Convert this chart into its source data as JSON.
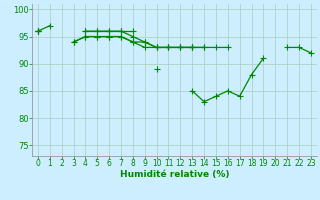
{
  "bg_color": "#cceeff",
  "grid_color": "#aaccbb",
  "line_color": "#008800",
  "xlabel": "Humidité relative (%)",
  "xlim": [
    -0.5,
    23.5
  ],
  "ylim": [
    73,
    101
  ],
  "yticks": [
    75,
    80,
    85,
    90,
    95,
    100
  ],
  "xticks": [
    0,
    1,
    2,
    3,
    4,
    5,
    6,
    7,
    8,
    9,
    10,
    11,
    12,
    13,
    14,
    15,
    16,
    17,
    18,
    19,
    20,
    21,
    22,
    23
  ],
  "lines": [
    [
      96,
      97,
      null,
      null,
      96,
      96,
      96,
      96,
      96,
      null,
      89,
      null,
      null,
      85,
      83,
      84,
      85,
      84,
      88,
      91,
      null,
      93,
      93,
      92
    ],
    [
      96,
      null,
      null,
      94,
      95,
      95,
      95,
      95,
      94,
      93,
      93,
      93,
      93,
      93,
      null,
      null,
      null,
      null,
      null,
      null,
      null,
      null,
      null,
      null
    ],
    [
      96,
      null,
      null,
      null,
      96,
      96,
      96,
      96,
      95,
      94,
      93,
      93,
      93,
      93,
      93,
      93,
      93,
      null,
      null,
      null,
      null,
      null,
      null,
      null
    ],
    [
      96,
      null,
      null,
      94,
      95,
      95,
      95,
      95,
      94,
      94,
      93,
      93,
      93,
      93,
      93,
      null,
      null,
      null,
      null,
      null,
      null,
      null,
      null,
      null
    ]
  ],
  "xlabel_fontsize": 6.5,
  "tick_fontsize": 5.5,
  "lw": 0.9,
  "ms": 2.5
}
